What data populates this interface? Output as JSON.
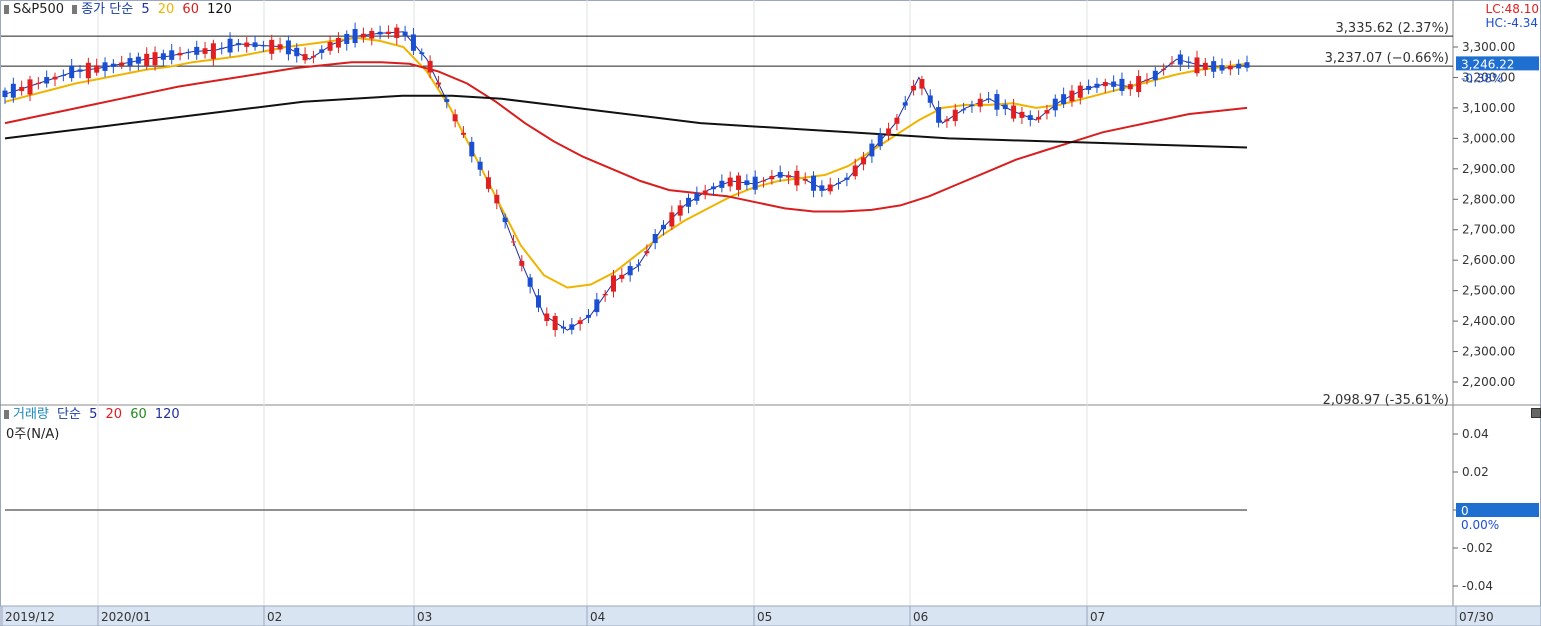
{
  "price_panel": {
    "symbol": "S&P500",
    "ma_label": "종가 단순",
    "ma_periods": [
      {
        "label": "5",
        "color": "#1f2fa0"
      },
      {
        "label": "20",
        "color": "#f0b400"
      },
      {
        "label": "60",
        "color": "#d81e1e"
      },
      {
        "label": "120",
        "color": "#111111"
      }
    ],
    "lc_label": "LC:48.10",
    "hc_label": "HC:-4.34",
    "hline_labels": {
      "high": "3,335.62 (2.37%)",
      "prev": "3,237.07 (−0.66%)",
      "low": "2,098.97 (-35.61%)"
    },
    "current_price": "3,246.22",
    "current_change": "-0.38%"
  },
  "volume_panel": {
    "title": "거래량",
    "ma_label": "단순",
    "ma_periods": [
      {
        "label": "5",
        "color": "#1f2fa0"
      },
      {
        "label": "20",
        "color": "#d81e1e"
      },
      {
        "label": "60",
        "color": "#1e8a1e"
      },
      {
        "label": "120",
        "color": "#1f2fa0"
      }
    ],
    "value_text": "0주(N/A)",
    "current_value": "0",
    "current_pct": "0.00%"
  },
  "colors": {
    "up": "#e02020",
    "down": "#1a4fd1",
    "grid": "#e2e2e2",
    "ma5": "#1f2fa0",
    "ma20": "#f0b400",
    "ma60": "#d81e1e",
    "ma120": "#111111",
    "axis_bg": "#d9e4f2",
    "price_tag": "#1f6fd0"
  },
  "chart_data": [
    {
      "type": "line",
      "title": "S&P500",
      "x_ticks": [
        "2019/12",
        "2020/01",
        "02",
        "03",
        "04",
        "05",
        "06",
        "07",
        "07/30"
      ],
      "y_ticks": [
        "3,300.00",
        "3,200.00",
        "3,100.00",
        "3,000.00",
        "2,900.00",
        "2,800.00",
        "2,700.00",
        "2,600.00",
        "2,500.00",
        "2,400.00",
        "2,300.00",
        "2,200.00"
      ],
      "ylim": [
        2180,
        3380
      ],
      "reference_levels": [
        3335.62,
        3237.07,
        2098.97
      ],
      "series": [
        {
          "name": "5",
          "values": [
            3145,
            3170,
            3195,
            3220,
            3230,
            3245,
            3260,
            3270,
            3285,
            3290,
            3310,
            3305,
            3300,
            3260,
            3310,
            3335,
            3345,
            3350,
            3260,
            3100,
            2950,
            2800,
            2600,
            2420,
            2370,
            2420,
            2530,
            2580,
            2700,
            2780,
            2830,
            2860,
            2850,
            2880,
            2870,
            2830,
            2870,
            2960,
            3050,
            3200,
            3050,
            3100,
            3130,
            3090,
            3060,
            3120,
            3160,
            3180,
            3170,
            3200,
            3260,
            3240,
            3230,
            3240
          ]
        },
        {
          "name": "20",
          "values": [
            3120,
            3140,
            3160,
            3180,
            3195,
            3210,
            3225,
            3235,
            3250,
            3260,
            3270,
            3285,
            3300,
            3310,
            3320,
            3330,
            3320,
            3300,
            3220,
            3100,
            2950,
            2800,
            2650,
            2550,
            2510,
            2520,
            2560,
            2620,
            2680,
            2730,
            2770,
            2810,
            2840,
            2860,
            2870,
            2880,
            2910,
            2960,
            3010,
            3060,
            3100,
            3110,
            3110,
            3115,
            3100,
            3110,
            3130,
            3150,
            3170,
            3190,
            3210,
            3225,
            3235,
            3245
          ]
        },
        {
          "name": "60",
          "values": [
            3050,
            3070,
            3090,
            3110,
            3130,
            3150,
            3170,
            3185,
            3200,
            3215,
            3230,
            3240,
            3250,
            3250,
            3245,
            3220,
            3180,
            3120,
            3050,
            2990,
            2940,
            2900,
            2860,
            2830,
            2820,
            2810,
            2790,
            2770,
            2760,
            2760,
            2765,
            2780,
            2810,
            2850,
            2890,
            2930,
            2960,
            2990,
            3020,
            3040,
            3060,
            3080,
            3090,
            3100
          ]
        },
        {
          "name": "120",
          "values": [
            3000,
            3020,
            3040,
            3060,
            3080,
            3100,
            3120,
            3130,
            3140,
            3140,
            3130,
            3110,
            3090,
            3070,
            3050,
            3040,
            3030,
            3020,
            3010,
            3000,
            2995,
            2990,
            2985,
            2980,
            2975,
            2970
          ]
        }
      ]
    },
    {
      "type": "bar",
      "title": "거래량",
      "y_ticks": [
        "0.04",
        "0.02",
        "0",
        "-0.02",
        "-0.04"
      ],
      "ylim": [
        -0.05,
        0.05
      ],
      "series": [
        {
          "name": "0주(N/A)",
          "values": [
            0
          ]
        }
      ]
    }
  ]
}
